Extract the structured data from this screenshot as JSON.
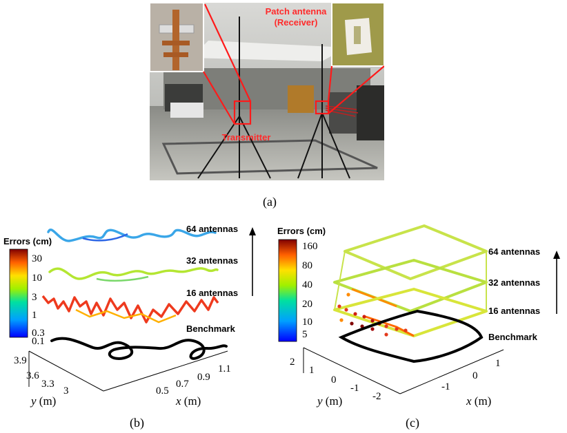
{
  "panel_a": {
    "caption": "(a)",
    "receiver_label_line1": "Patch antenna",
    "receiver_label_line2": "(Receiver)",
    "transmitter_label": "Transmitter"
  },
  "panel_b": {
    "caption": "(b)",
    "colorbar_title": "Errors (cm)",
    "colorbar_ticks": [
      "30",
      "10",
      "3",
      "1",
      "0.3",
      "0.1"
    ],
    "layer_labels": [
      "64 antennas",
      "32 antennas",
      "16 antennas",
      "Benchmark"
    ],
    "y_ticks": [
      "3.9",
      "3.6",
      "3.3",
      "3"
    ],
    "x_ticks": [
      "0.5",
      "0.7",
      "0.9",
      "1.1"
    ],
    "y_label_var": "y",
    "y_label_unit": "(m)",
    "x_label_var": "x",
    "x_label_unit": "(m)"
  },
  "panel_c": {
    "caption": "(c)",
    "colorbar_title": "Errors (cm)",
    "colorbar_ticks": [
      "160",
      "80",
      "40",
      "20",
      "10",
      "5"
    ],
    "layer_labels": [
      "64 antennas",
      "32 antennas",
      "16 antennas",
      "Benchmark"
    ],
    "y_ticks": [
      "2",
      "1",
      "0",
      "-1",
      "-2"
    ],
    "x_ticks": [
      "1",
      "0",
      "-1"
    ],
    "y_label_var": "y",
    "y_label_unit": "(m)",
    "x_label_var": "x",
    "x_label_unit": "(m)"
  },
  "colors": {
    "annotation_red": "#ff2a2a",
    "colormap": [
      "#0000ff",
      "#00a0ff",
      "#00e0a0",
      "#a0f000",
      "#ffe000",
      "#ff8000",
      "#ff0000",
      "#800000"
    ]
  }
}
